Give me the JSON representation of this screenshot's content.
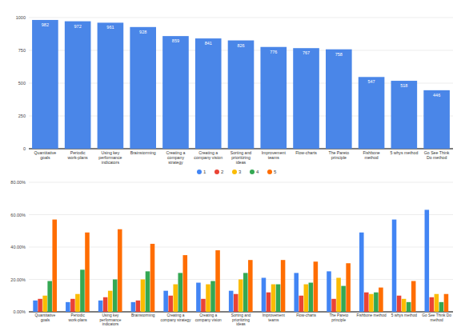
{
  "chart_data": [
    {
      "type": "bar",
      "categories": [
        "Quantitative goals",
        "Periodic work-plans",
        "Using key performance indicators",
        "Brainstorming",
        "Creating a company strategy",
        "Creating a company vision",
        "Sorting and prioritizing ideas",
        "Improvement teams",
        "Flow-charts",
        "The Pareto principle",
        "Fishbone method",
        "5 whys method",
        "Go See Think Do method"
      ],
      "values": [
        982,
        972,
        961,
        928,
        859,
        841,
        826,
        776,
        767,
        758,
        547,
        518,
        446
      ],
      "color": "#4a86e8",
      "ylim": [
        0,
        1000
      ],
      "yticks": [
        0,
        250,
        500,
        750,
        1000
      ],
      "grid": true,
      "data_labels": true
    },
    {
      "type": "bar",
      "categories": [
        "Quantitative goals",
        "Periodic work-plans",
        "Using key performance indicators",
        "Brainstorming",
        "Creating a company strategy",
        "Creating a company vision",
        "Sorting and prioritizing ideas",
        "Improvement teams",
        "Flow-charts",
        "The Pareto principle",
        "Fishbone method",
        "5 whys method",
        "Go See Think Do method"
      ],
      "series": [
        {
          "name": "1",
          "color": "#4285f4",
          "values": [
            7,
            6,
            7,
            6,
            13,
            18,
            13,
            21,
            24,
            25,
            49,
            57,
            63
          ]
        },
        {
          "name": "2",
          "color": "#ea4335",
          "values": [
            8,
            8,
            9,
            7,
            10,
            8,
            11,
            12,
            10,
            8,
            12,
            10,
            9
          ]
        },
        {
          "name": "3",
          "color": "#fbbc04",
          "values": [
            10,
            11,
            13,
            20,
            17,
            17,
            20,
            17,
            17,
            21,
            11,
            8,
            11
          ]
        },
        {
          "name": "4",
          "color": "#34a853",
          "values": [
            19,
            26,
            20,
            25,
            24,
            19,
            24,
            17,
            18,
            16,
            12,
            6,
            6
          ]
        },
        {
          "name": "5",
          "color": "#ff6d01",
          "values": [
            57,
            49,
            51,
            42,
            35,
            38,
            32,
            32,
            31,
            30,
            15,
            19,
            11
          ]
        }
      ],
      "ylim": [
        0,
        80
      ],
      "yticks": [
        {
          "value": 0,
          "label": "0.00%"
        },
        {
          "value": 20,
          "label": "20.00%"
        },
        {
          "value": 40,
          "label": "40.00%"
        },
        {
          "value": 60,
          "label": "60.00%"
        },
        {
          "value": 80,
          "label": "80.00%"
        }
      ],
      "grid": true,
      "legend": "top"
    }
  ]
}
